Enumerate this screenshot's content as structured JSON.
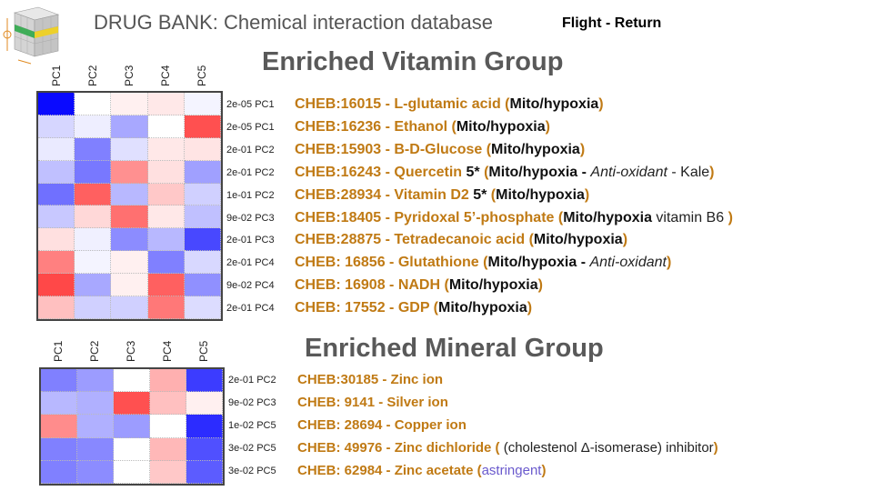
{
  "header": {
    "title": "DRUG BANK: Chemical interaction database",
    "flight": "Flight - Return"
  },
  "vitamin": {
    "title": "Enriched Vitamin Group",
    "columns": [
      "PC1",
      "PC2",
      "PC3",
      "PC4",
      "PC5"
    ],
    "heatmap": [
      [
        "#0a0aff",
        "#ffffff",
        "#fff0f0",
        "#ffe8e8",
        "#f4f4ff"
      ],
      [
        "#d6d6ff",
        "#eeeeff",
        "#a8a8ff",
        "#ffffff",
        "#ff5050"
      ],
      [
        "#eaeaff",
        "#8080ff",
        "#e0e0ff",
        "#ffe8e8",
        "#ffe4e4"
      ],
      [
        "#c0c0ff",
        "#7878ff",
        "#ff9090",
        "#ffe0e0",
        "#a0a0ff"
      ],
      [
        "#7070ff",
        "#ff6060",
        "#b8b8ff",
        "#ffc8c8",
        "#d0d0ff"
      ],
      [
        "#c8c8ff",
        "#ffd8d8",
        "#ff7070",
        "#ffe8e8",
        "#c0c0ff"
      ],
      [
        "#ffe0e0",
        "#f0f0ff",
        "#8c8cff",
        "#b8b8ff",
        "#4848ff"
      ],
      [
        "#ff8080",
        "#f4f4ff",
        "#fff0f0",
        "#8080ff",
        "#d8d8ff"
      ],
      [
        "#ff4848",
        "#a8a8ff",
        "#fff0f0",
        "#ff6060",
        "#9090ff"
      ],
      [
        "#ffc0c0",
        "#d0d0ff",
        "#d0d0ff",
        "#ff7878",
        "#dcdcff"
      ]
    ],
    "rows": [
      {
        "pv": "2e-05 PC1",
        "parts": [
          {
            "t": "CHEB:16015 - L-glutamic acid (",
            "c": ""
          },
          {
            "t": "Mito/hypoxia",
            "c": "blk"
          },
          {
            "t": ")",
            "c": ""
          }
        ]
      },
      {
        "pv": "2e-05 PC1",
        "parts": [
          {
            "t": "CHEB:16236 - Ethanol (",
            "c": ""
          },
          {
            "t": "Mito/hypoxia",
            "c": "blk"
          },
          {
            "t": ")",
            "c": ""
          }
        ]
      },
      {
        "pv": "2e-01 PC2",
        "parts": [
          {
            "t": "CHEB:15903  - B-D-Glucose (",
            "c": ""
          },
          {
            "t": "Mito/hypoxia",
            "c": "blk"
          },
          {
            "t": ")",
            "c": ""
          }
        ]
      },
      {
        "pv": "2e-01 PC2",
        "parts": [
          {
            "t": "CHEB:16243  - Quercetin  ",
            "c": ""
          },
          {
            "t": "5*",
            "c": "blk"
          },
          {
            "t": " (",
            "c": ""
          },
          {
            "t": "Mito/hypoxia - ",
            "c": "blk"
          },
          {
            "t": "Anti-oxidant",
            "c": "it"
          },
          {
            "t": " - Kale",
            "c": "nm"
          },
          {
            "t": ")",
            "c": ""
          }
        ]
      },
      {
        "pv": "1e-01 PC2",
        "parts": [
          {
            "t": "CHEB:28934  - Vitamin D2 ",
            "c": ""
          },
          {
            "t": "5*",
            "c": "blk"
          },
          {
            "t": " (",
            "c": ""
          },
          {
            "t": "Mito/hypoxia",
            "c": "blk"
          },
          {
            "t": ")",
            "c": ""
          }
        ]
      },
      {
        "pv": "9e-02 PC3",
        "parts": [
          {
            "t": "CHEB:18405  - Pyridoxal 5’-phosphate (",
            "c": ""
          },
          {
            "t": "Mito/hypoxia",
            "c": "blk"
          },
          {
            "t": " vitamin B6 ",
            "c": "nm"
          },
          {
            "t": ")",
            "c": ""
          }
        ]
      },
      {
        "pv": "2e-01 PC3",
        "parts": [
          {
            "t": "CHEB:28875  - Tetradecanoic acid (",
            "c": ""
          },
          {
            "t": "Mito/hypoxia",
            "c": "blk"
          },
          {
            "t": ")",
            "c": ""
          }
        ]
      },
      {
        "pv": "2e-01 PC4",
        "parts": [
          {
            "t": "CHEB: 16856 - Glutathione (",
            "c": ""
          },
          {
            "t": "Mito/hypoxia - ",
            "c": "blk"
          },
          {
            "t": "Anti-oxidant",
            "c": "it"
          },
          {
            "t": ")",
            "c": ""
          }
        ]
      },
      {
        "pv": "9e-02 PC4",
        "parts": [
          {
            "t": "CHEB: 16908 - NADH (",
            "c": ""
          },
          {
            "t": "Mito/hypoxia",
            "c": "blk"
          },
          {
            "t": ")",
            "c": ""
          }
        ]
      },
      {
        "pv": "2e-01 PC4",
        "parts": [
          {
            "t": "CHEB: 17552 - GDP (",
            "c": ""
          },
          {
            "t": "Mito/hypoxia",
            "c": "blk"
          },
          {
            "t": ")",
            "c": ""
          }
        ]
      }
    ]
  },
  "mineral": {
    "title": "Enriched Mineral Group",
    "columns": [
      "PC1",
      "PC2",
      "PC3",
      "PC4",
      "PC5"
    ],
    "heatmap": [
      [
        "#8080ff",
        "#9c9cff",
        "#ffffff",
        "#ffb0b0",
        "#3c3cff"
      ],
      [
        "#b8b8ff",
        "#b0b0ff",
        "#ff5050",
        "#ffc0c0",
        "#fff0f0"
      ],
      [
        "#ff8c8c",
        "#b0b0ff",
        "#9c9cff",
        "#ffffff",
        "#2c2cff"
      ],
      [
        "#8080ff",
        "#8888ff",
        "#ffffff",
        "#ffb8b8",
        "#5050ff"
      ],
      [
        "#8080ff",
        "#8c8cff",
        "#ffffff",
        "#ffc8c8",
        "#5c5cff"
      ]
    ],
    "rows": [
      {
        "pv": "2e-01 PC2",
        "parts": [
          {
            "t": "CHEB:30185  - Zinc ion",
            "c": ""
          }
        ]
      },
      {
        "pv": "9e-02 PC3",
        "parts": [
          {
            "t": "CHEB: 9141   - Silver ion",
            "c": ""
          }
        ]
      },
      {
        "pv": "1e-02 PC5",
        "parts": [
          {
            "t": "CHEB: 28694 - Copper ion",
            "c": ""
          }
        ]
      },
      {
        "pv": "3e-02 PC5",
        "parts": [
          {
            "t": "CHEB: 49976 - Zinc dichloride ( ",
            "c": ""
          },
          {
            "t": "(cholestenol Δ-isomerase) inhibitor",
            "c": "nm"
          },
          {
            "t": ")",
            "c": ""
          }
        ]
      },
      {
        "pv": "3e-02 PC5",
        "parts": [
          {
            "t": "CHEB: 62984 - Zinc acetate (",
            "c": ""
          },
          {
            "t": "astringent",
            "c": "purple"
          },
          {
            "t": ")",
            "c": ""
          }
        ]
      }
    ]
  }
}
